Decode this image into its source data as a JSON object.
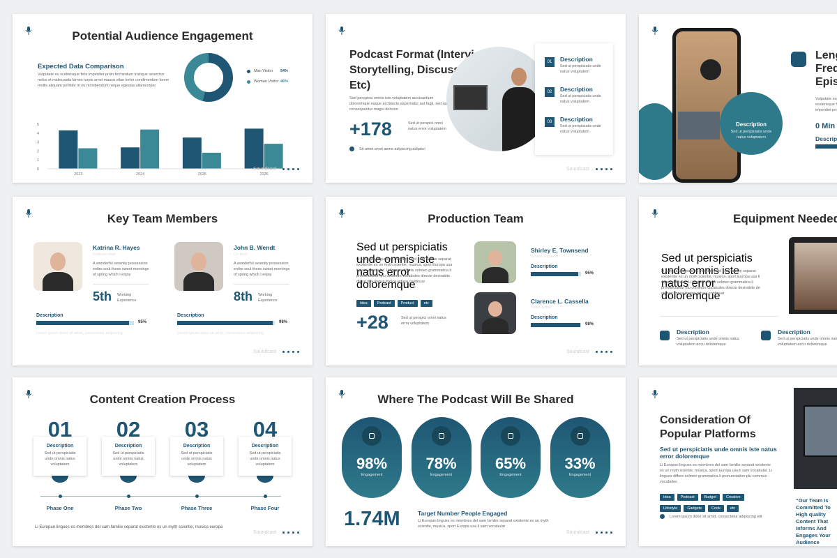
{
  "footer": "Soundcast",
  "slides": [
    {
      "title": "Potential Audience Engagement",
      "subtitle": "Expected Data Comparison",
      "body": "Vulputate eu scelerisque felis imperdiet proin fermentum tristique senectus netus et malesuada fames turpis amet massa vitae tortor condimentum lorem mollis aliquam porttitor in eu mi bibendum neque egestas ullamcorper",
      "legend": [
        {
          "name": "Man Visitor",
          "value": 54,
          "label": "54%",
          "color": "#1f5673"
        },
        {
          "name": "Woman Visitor",
          "value": 46,
          "label": "46%",
          "color": "#3b8896"
        }
      ],
      "chart": {
        "type": "bar",
        "categories": [
          "2023",
          "2024",
          "2025",
          "2026"
        ],
        "series": [
          {
            "color": "#1f5673",
            "values": [
              4.3,
              2.4,
              3.5,
              4.5
            ]
          },
          {
            "color": "#3b8896",
            "values": [
              2.3,
              4.4,
              1.8,
              2.8
            ]
          }
        ],
        "ylim": [
          0,
          5
        ],
        "yticks": [
          0,
          1,
          2,
          3,
          4,
          5
        ]
      }
    },
    {
      "title": "Podcast Format (Interviews, Storytelling, Discussions, Etc)",
      "body": "Sed perspicia omnis iste voluptatem accusantium doloremque eaque architecto aspernatur aut fugit, sed quia consequuntur magni dolores",
      "stat": "+178",
      "stat_text": "Sed ut perspici omni natus error voluptatem",
      "note": "Sit amet amet asme adipiscing adipisci",
      "items": [
        {
          "num": "01",
          "title": "Description",
          "text": "Sed ut perspiciatis unde natus voluptatem"
        },
        {
          "num": "02",
          "title": "Description",
          "text": "Sed ut perspiciatis unde natus voluptatem"
        },
        {
          "num": "03",
          "title": "Description",
          "text": "Sed ut perspiciatis unde natus voluptatem"
        }
      ]
    },
    {
      "title": "Length Frequency Episodes",
      "body": "Vulputate eu scelerisque felis imperdiet proin",
      "stat": "0 Min",
      "label": "Description",
      "circle_title": "Description",
      "circle_text": "Sed ut perspiciatis unde natus voluptatem"
    },
    {
      "title": "Key Team Members",
      "members": [
        {
          "name": "Katrina R. Hayes",
          "role": "Podcast Host",
          "text": "A wonderful serenity possession entire soul these sweet mornings of spring which I enjoy",
          "num": "5th",
          "exp": "Working Experience",
          "bar_label": "Description",
          "value": 95,
          "label": "95%",
          "caption": "Lorem ipsum dolor sit amet, consectetur adipiscing"
        },
        {
          "name": "John B. Wendt",
          "role": "Co Host",
          "text": "A wonderful serenity possession entire soul these sweet mornings of spring which I enjoy",
          "num": "8th",
          "exp": "Working Experience",
          "bar_label": "Description",
          "value": 98,
          "label": "98%",
          "caption": "Lorem ipsum dolor sit amet, consectetur adipiscing"
        }
      ]
    },
    {
      "title": "Production Team",
      "heading": "Sed ut perspiciatis unde omnis iste natus error doloremque",
      "body": "Li Europan lingues es membres del sam familie separat existentie es un myth scientie, musica, sport Europa usa li sam vocabular. Li lingues differe solmen grammatica li pronunciation plu commun vocabules directe desirabite de un nov lingua franca refusa continuar",
      "tags": [
        "Idea",
        "Podcast",
        "Product",
        "etc"
      ],
      "stat": "+28",
      "stat_text": "Sed ut perspici omni natus error voluptatem",
      "members": [
        {
          "name": "Shirley E. Townsend",
          "role": "Sound Engineer",
          "bar_label": "Description",
          "value": 95,
          "label": "95%"
        },
        {
          "name": "Clarence L. Cassella",
          "role": "Video Editor",
          "bar_label": "Description",
          "value": 98,
          "label": "98%"
        }
      ]
    },
    {
      "title": "Equipment Needed",
      "heading": "Sed ut perspiciatis unde omnis iste natus error doloremque",
      "body": "Li Europan lingues es membres del sam familie separat existentie es un myth scientie, musica, sport Europa usa li sam vocabular. Li lingues differe solmen grammatica li pronunciation plu commun vocabules directe desirabite de un nov lingua franca refusa continuar",
      "items": [
        {
          "title": "Description",
          "text": "Sed ut perspiciatis unde omnis natus voluptatem accu doloremque"
        },
        {
          "title": "Description",
          "text": "Sed ut perspiciatis unde omnis natus voluptatem accu doloremque"
        }
      ]
    },
    {
      "title": "Content Creation Process",
      "steps": [
        {
          "num": "01",
          "title": "Description",
          "text": "Sed ut perspiciatis unde omnis natus voluptatem",
          "phase": "Phase One"
        },
        {
          "num": "02",
          "title": "Description",
          "text": "Sed ut perspiciatis unde omnis natus voluptatem",
          "phase": "Phase Two"
        },
        {
          "num": "03",
          "title": "Description",
          "text": "Sed ut perspiciatis unde omnis natus voluptatem",
          "phase": "Phase Three"
        },
        {
          "num": "04",
          "title": "Description",
          "text": "Sed ut perspiciatis unde omnis natus voluptatem",
          "phase": "Phase Four"
        }
      ],
      "caption": "Li Europan lingues es membres del sam familie separat existente es un myth scientie, musica europa"
    },
    {
      "title": "Where The Podcast Will Be Shared",
      "platforms": [
        {
          "value": "98%",
          "caption": "Engagement"
        },
        {
          "value": "78%",
          "caption": "Engagement"
        },
        {
          "value": "65%",
          "caption": "Engagement"
        },
        {
          "value": "33%",
          "caption": "Engagement"
        }
      ],
      "stat": "1.74M",
      "stat_title": "Target Number People Engaged",
      "stat_text": "Li Europan lingues es membres del sam familie separat existente es un myth scientie, musica, sport Europa usa li sam vocabular"
    },
    {
      "title": "Consideration Of Popular Platforms",
      "heading": "Sed ut perspiciatis unde omnis iste natus error doloremque",
      "body": "Li Europan lingues es membres del sam familie separat existente es un myth scientie, musica, sport Europa usa li sam vocabular. Li lingues differe solmen grammatica li pronunciation plu commun vocabules",
      "tags": [
        "Idea",
        "Podcast",
        "Budget",
        "Creative",
        "Lifestyle",
        "Gadgets",
        "Cook",
        "etc"
      ],
      "note": "Lorem ipsum dolor sit amet, consectetur adipiscing elit",
      "quote": "“Our Team Is Committed To High quality Content That Informs And Engages Your Audience"
    }
  ]
}
